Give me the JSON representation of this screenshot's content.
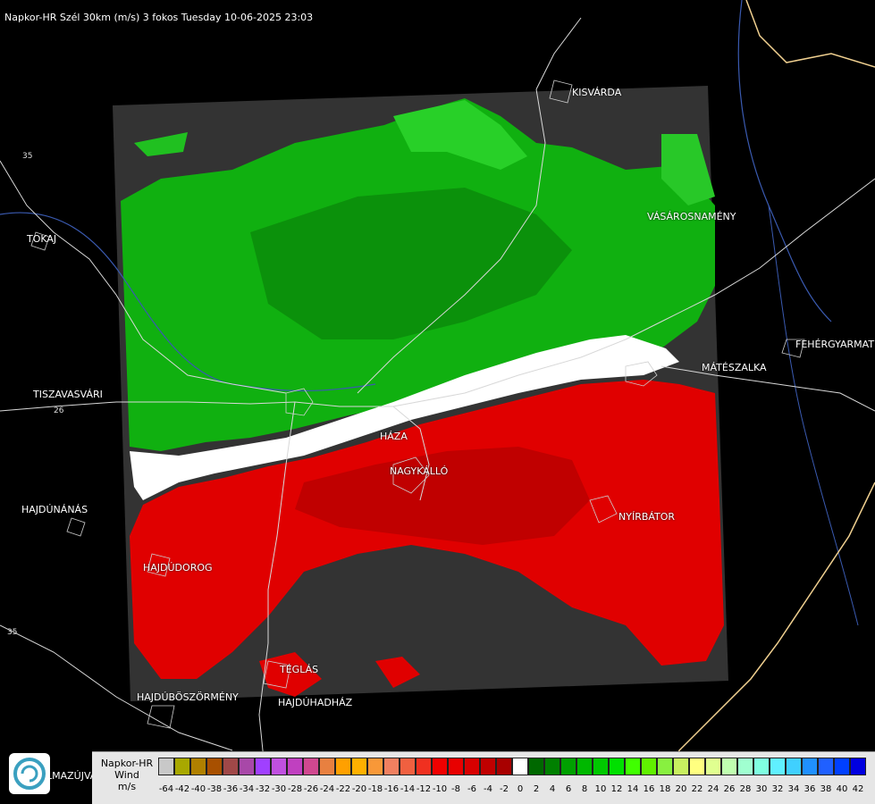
{
  "title": "Napkor-HR Szél 30km (m/s) 3 fokos Tuesday 10-06-2025 23:03",
  "places": [
    {
      "name": "KISVÁRDA",
      "id": "kisvarda"
    },
    {
      "name": "TOKAJ",
      "id": "tokaj"
    },
    {
      "name": "VÁSÁROSNAMÉNY",
      "id": "vasarosnameny"
    },
    {
      "name": "FEHÉRGYARMAT",
      "id": "fehergyarmat"
    },
    {
      "name": "MÁTÉSZALKA",
      "id": "mateszalka"
    },
    {
      "name": "TISZAVASVÁRI",
      "id": "tiszavasvari"
    },
    {
      "name": "HÁZA",
      "id": "haza"
    },
    {
      "name": "NAGYKÁLLÓ",
      "id": "nagykallo"
    },
    {
      "name": "HAJDÚNÁNÁS",
      "id": "hajdunanas"
    },
    {
      "name": "NYÍRBÁTOR",
      "id": "nyirbator"
    },
    {
      "name": "HAJDÚDOROG",
      "id": "hajdudorog"
    },
    {
      "name": "TÉGLÁS",
      "id": "teglas"
    },
    {
      "name": "HAJDÚBÖSZÖRMÉNY",
      "id": "hajduboszormeny"
    },
    {
      "name": "HAJDÚHADHÁZ",
      "id": "hajduhadhaz"
    }
  ],
  "road_numbers": [
    "35",
    "26",
    "35"
  ],
  "corner_text": "LMAZÚJVÁR",
  "legend": {
    "line1": "Napkor-HR",
    "line2": "Wind",
    "line3": "m/s",
    "swatch_colors": [
      "#c8c8c8",
      "#a8a800",
      "#b08000",
      "#a85000",
      "#a04848",
      "#a848a8",
      "#a040ff",
      "#c050e0",
      "#c040c0",
      "#d04890",
      "#e88040",
      "#ffa000",
      "#ffb000",
      "#f89838",
      "#f08060",
      "#f06040",
      "#f03020",
      "#f00000",
      "#e80000",
      "#d80000",
      "#c00000",
      "#a80000",
      "#ffffff",
      "#006800",
      "#008000",
      "#00a000",
      "#00b800",
      "#00c800",
      "#00e000",
      "#40ff00",
      "#60f000",
      "#88f040",
      "#c8f060",
      "#ffff80",
      "#e0ff90",
      "#c0ffb0",
      "#a0ffd0",
      "#80ffe0",
      "#60f0ff",
      "#40d0ff",
      "#2090ff",
      "#2060ff",
      "#0040ff",
      "#0000e0"
    ],
    "ticks": [
      "-64",
      "-42",
      "-40",
      "-38",
      "-36",
      "-34",
      "-32",
      "-30",
      "-28",
      "-26",
      "-24",
      "-22",
      "-20",
      "-18",
      "-16",
      "-14",
      "-12",
      "-10",
      "-8",
      "-6",
      "-4",
      "-2",
      "0",
      "2",
      "4",
      "6",
      "8",
      "10",
      "12",
      "14",
      "16",
      "18",
      "20",
      "22",
      "24",
      "26",
      "28",
      "30",
      "32",
      "34",
      "36",
      "38",
      "40",
      "42"
    ]
  }
}
